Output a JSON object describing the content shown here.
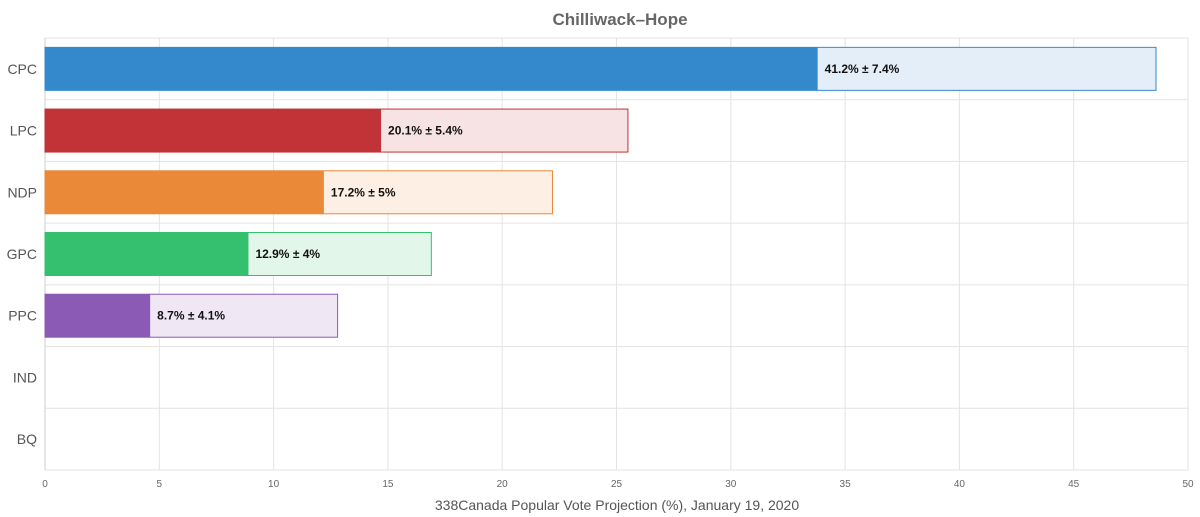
{
  "chart_data": {
    "type": "bar",
    "orientation": "horizontal",
    "title": "Chilliwack–Hope",
    "xlabel": "338Canada Popular Vote Projection (%), January 19, 2020",
    "ylabel": "",
    "xlim": [
      0,
      50
    ],
    "xticks": [
      "0",
      "5",
      "10",
      "15",
      "20",
      "25",
      "30",
      "35",
      "40",
      "45",
      "50"
    ],
    "grid": true,
    "categories": [
      "CPC",
      "LPC",
      "NDP",
      "GPC",
      "PPC",
      "IND",
      "BQ"
    ],
    "series": [
      {
        "values": [
          33.8,
          14.7,
          12.2,
          8.9,
          4.6,
          null,
          null
        ],
        "colors": [
          "#3489cc",
          "#c13336",
          "#ea8937",
          "#35c06f",
          "#8b5ab5",
          null,
          null
        ]
      },
      {
        "values": [
          48.6,
          25.5,
          22.2,
          16.9,
          12.8,
          null,
          null
        ],
        "colors": [
          "#e4eef9",
          "#f8e3e4",
          "#fdefe4",
          "#e3f6ea",
          "#efe8f4",
          null,
          null
        ]
      }
    ],
    "labels": [
      "41.2% ± 7.4%",
      "20.1% ± 5.4%",
      "17.2% ± 5%",
      "12.9% ± 4%",
      "8.7% ± 4.1%",
      "",
      ""
    ]
  }
}
